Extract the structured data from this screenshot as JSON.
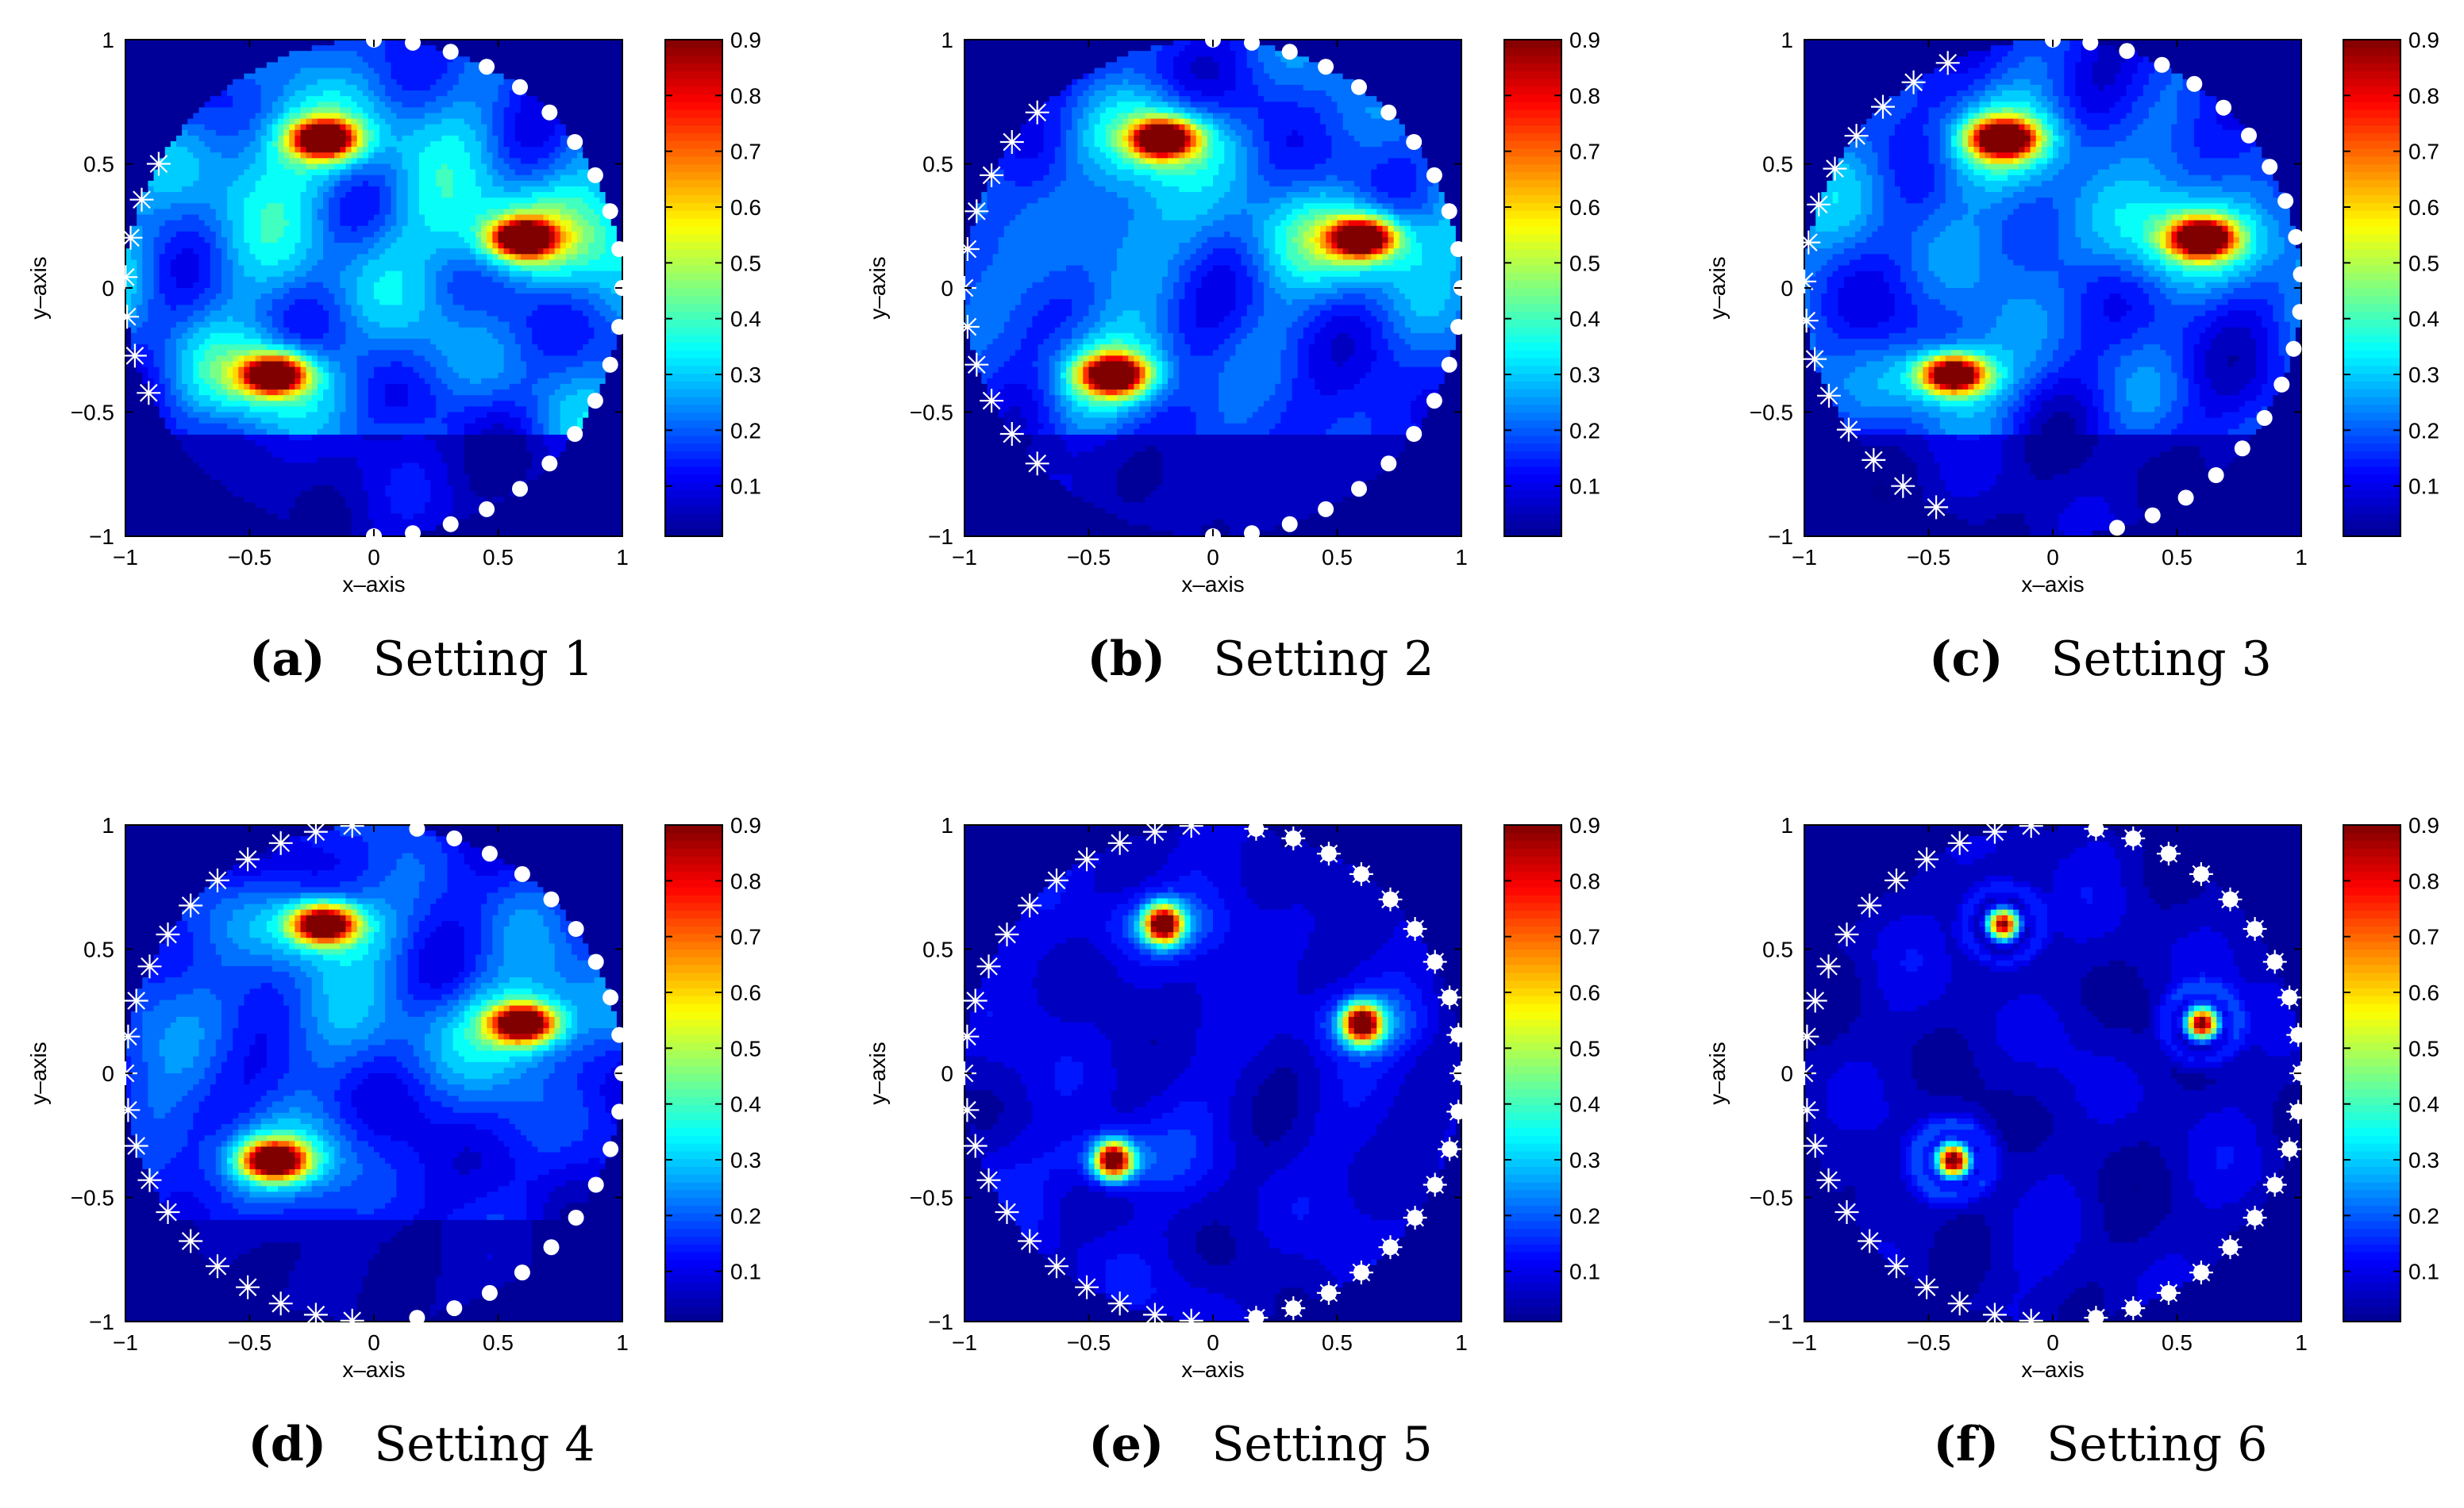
{
  "figure": {
    "colormap": [
      "#00008f",
      "#0000ff",
      "#0080ff",
      "#00ffff",
      "#80ff80",
      "#ffff00",
      "#ff8000",
      "#ff0000",
      "#800000"
    ],
    "marker_color": "#ffffff"
  },
  "chart_data": [
    {
      "type": "heatmap",
      "panel": "a",
      "caption_letter": "(a)",
      "caption_text": "Setting 1",
      "xlabel": "x–axis",
      "ylabel": "y–axis",
      "xlim": [
        -1,
        1
      ],
      "ylim": [
        -1,
        1
      ],
      "xticks": [
        -1,
        -0.5,
        0,
        0.5,
        1
      ],
      "xticklabels": [
        "−1",
        "−0.5",
        "0",
        "0.5",
        "1"
      ],
      "yticks": [
        -1,
        -0.5,
        0,
        0.5,
        1
      ],
      "yticklabels": [
        "−1",
        "−0.5",
        "0",
        "0.5",
        "1"
      ],
      "colorbar": {
        "range": [
          0.01,
          0.9
        ],
        "ticks": [
          0.1,
          0.2,
          0.3,
          0.4,
          0.5,
          0.6,
          0.7,
          0.8,
          0.9
        ],
        "ticklabels": [
          "0.1",
          "0.2",
          "0.3",
          "0.4",
          "0.5",
          "0.6",
          "0.7",
          "0.8",
          "0.9"
        ]
      },
      "peaks": [
        [
          -0.2,
          0.6
        ],
        [
          0.6,
          0.2
        ],
        [
          -0.4,
          -0.35
        ]
      ],
      "background_level": 0.2,
      "peak_shape": "elongated",
      "receivers": {
        "marker": "dot",
        "angle_deg": [
          -90,
          90
        ],
        "count": 21
      },
      "transmitters": {
        "marker": "star",
        "angle_deg": [
          150,
          205
        ],
        "count": 7
      }
    },
    {
      "type": "heatmap",
      "panel": "b",
      "caption_letter": "(b)",
      "caption_text": "Setting 2",
      "xlabel": "x–axis",
      "ylabel": "y–axis",
      "xlim": [
        -1,
        1
      ],
      "ylim": [
        -1,
        1
      ],
      "xticks": [
        -1,
        -0.5,
        0,
        0.5,
        1
      ],
      "xticklabels": [
        "−1",
        "−0.5",
        "0",
        "0.5",
        "1"
      ],
      "yticks": [
        -1,
        -0.5,
        0,
        0.5,
        1
      ],
      "yticklabels": [
        "−1",
        "−0.5",
        "0",
        "0.5",
        "1"
      ],
      "colorbar": {
        "range": [
          0.01,
          0.9
        ],
        "ticks": [
          0.1,
          0.2,
          0.3,
          0.4,
          0.5,
          0.6,
          0.7,
          0.8,
          0.9
        ],
        "ticklabels": [
          "0.1",
          "0.2",
          "0.3",
          "0.4",
          "0.5",
          "0.6",
          "0.7",
          "0.8",
          "0.9"
        ]
      },
      "peaks": [
        [
          -0.2,
          0.6
        ],
        [
          0.6,
          0.2
        ],
        [
          -0.4,
          -0.35
        ]
      ],
      "background_level": 0.17,
      "peak_shape": "elongated",
      "receivers": {
        "marker": "dot",
        "angle_deg": [
          -90,
          90
        ],
        "count": 21
      },
      "transmitters": {
        "marker": "star",
        "angle_deg": [
          135,
          225
        ],
        "count": 11
      }
    },
    {
      "type": "heatmap",
      "panel": "c",
      "caption_letter": "(c)",
      "caption_text": "Setting 3",
      "xlabel": "x–axis",
      "ylabel": "y–axis",
      "xlim": [
        -1,
        1
      ],
      "ylim": [
        -1,
        1
      ],
      "xticks": [
        -1,
        -0.5,
        0,
        0.5,
        1
      ],
      "xticklabels": [
        "−1",
        "−0.5",
        "0",
        "0.5",
        "1"
      ],
      "yticks": [
        -1,
        -0.5,
        0,
        0.5,
        1
      ],
      "yticklabels": [
        "−1",
        "−0.5",
        "0",
        "0.5",
        "1"
      ],
      "colorbar": {
        "range": [
          0.01,
          0.9
        ],
        "ticks": [
          0.1,
          0.2,
          0.3,
          0.4,
          0.5,
          0.6,
          0.7,
          0.8,
          0.9
        ],
        "ticklabels": [
          "0.1",
          "0.2",
          "0.3",
          "0.4",
          "0.5",
          "0.6",
          "0.7",
          "0.8",
          "0.9"
        ]
      },
      "peaks": [
        [
          -0.2,
          0.6
        ],
        [
          0.6,
          0.2
        ],
        [
          -0.4,
          -0.35
        ]
      ],
      "background_level": 0.16,
      "peak_shape": "elongated",
      "receivers": {
        "marker": "dot",
        "angle_deg": [
          -75,
          90
        ],
        "count": 20
      },
      "transmitters": {
        "marker": "star",
        "angle_deg": [
          115,
          242
        ],
        "count": 15
      }
    },
    {
      "type": "heatmap",
      "panel": "d",
      "caption_letter": "(d)",
      "caption_text": "Setting 4",
      "xlabel": "x–axis",
      "ylabel": "y–axis",
      "xlim": [
        -1,
        1
      ],
      "ylim": [
        -1,
        1
      ],
      "xticks": [
        -1,
        -0.5,
        0,
        0.5,
        1
      ],
      "xticklabels": [
        "−1",
        "−0.5",
        "0",
        "0.5",
        "1"
      ],
      "yticks": [
        -1,
        -0.5,
        0,
        0.5,
        1
      ],
      "yticklabels": [
        "−1",
        "−0.5",
        "0",
        "0.5",
        "1"
      ],
      "colorbar": {
        "range": [
          0.01,
          0.9
        ],
        "ticks": [
          0.1,
          0.2,
          0.3,
          0.4,
          0.5,
          0.6,
          0.7,
          0.8,
          0.9
        ],
        "ticklabels": [
          "0.1",
          "0.2",
          "0.3",
          "0.4",
          "0.5",
          "0.6",
          "0.7",
          "0.8",
          "0.9"
        ]
      },
      "peaks": [
        [
          -0.2,
          0.6
        ],
        [
          0.6,
          0.2
        ],
        [
          -0.4,
          -0.35
        ]
      ],
      "background_level": 0.14,
      "peak_shape": "elongated",
      "receivers": {
        "marker": "dot",
        "angle_deg": [
          -80,
          80
        ],
        "count": 19
      },
      "transmitters": {
        "marker": "star",
        "angle_deg": [
          95,
          265
        ],
        "count": 21
      }
    },
    {
      "type": "heatmap",
      "panel": "e",
      "caption_letter": "(e)",
      "caption_text": "Setting 5",
      "xlabel": "x–axis",
      "ylabel": "y–axis",
      "xlim": [
        -1,
        1
      ],
      "ylim": [
        -1,
        1
      ],
      "xticks": [
        -1,
        -0.5,
        0,
        0.5,
        1
      ],
      "xticklabels": [
        "−1",
        "−0.5",
        "0",
        "0.5",
        "1"
      ],
      "yticks": [
        -1,
        -0.5,
        0,
        0.5,
        1
      ],
      "yticklabels": [
        "−1",
        "−0.5",
        "0",
        "0.5",
        "1"
      ],
      "colorbar": {
        "range": [
          0.01,
          0.9
        ],
        "ticks": [
          0.1,
          0.2,
          0.3,
          0.4,
          0.5,
          0.6,
          0.7,
          0.8,
          0.9
        ],
        "ticklabels": [
          "0.1",
          "0.2",
          "0.3",
          "0.4",
          "0.5",
          "0.6",
          "0.7",
          "0.8",
          "0.9"
        ]
      },
      "peaks": [
        [
          -0.2,
          0.6
        ],
        [
          0.6,
          0.2
        ],
        [
          -0.4,
          -0.35
        ]
      ],
      "background_level": 0.1,
      "peak_shape": "compact",
      "receivers": {
        "marker": "dot+star",
        "angle_deg": [
          -80,
          80
        ],
        "count": 19
      },
      "transmitters": {
        "marker": "star",
        "angle_deg": [
          95,
          265
        ],
        "count": 21
      }
    },
    {
      "type": "heatmap",
      "panel": "f",
      "caption_letter": "(f)",
      "caption_text": "Setting 6",
      "xlabel": "x–axis",
      "ylabel": "y–axis",
      "xlim": [
        -1,
        1
      ],
      "ylim": [
        -1,
        1
      ],
      "xticks": [
        -1,
        -0.5,
        0,
        0.5,
        1
      ],
      "xticklabels": [
        "−1",
        "−0.5",
        "0",
        "0.5",
        "1"
      ],
      "yticks": [
        -1,
        -0.5,
        0,
        0.5,
        1
      ],
      "yticklabels": [
        "−1",
        "−0.5",
        "0",
        "0.5",
        "1"
      ],
      "colorbar": {
        "range": [
          0.01,
          0.9
        ],
        "ticks": [
          0.1,
          0.2,
          0.3,
          0.4,
          0.5,
          0.6,
          0.7,
          0.8,
          0.9
        ],
        "ticklabels": [
          "0.1",
          "0.2",
          "0.3",
          "0.4",
          "0.5",
          "0.6",
          "0.7",
          "0.8",
          "0.9"
        ]
      },
      "peaks": [
        [
          -0.2,
          0.6
        ],
        [
          0.6,
          0.2
        ],
        [
          -0.4,
          -0.35
        ]
      ],
      "background_level": 0.08,
      "peak_shape": "ring",
      "receivers": {
        "marker": "dot+star",
        "angle_deg": [
          -80,
          80
        ],
        "count": 19
      },
      "transmitters": {
        "marker": "star",
        "angle_deg": [
          95,
          265
        ],
        "count": 21
      }
    }
  ]
}
